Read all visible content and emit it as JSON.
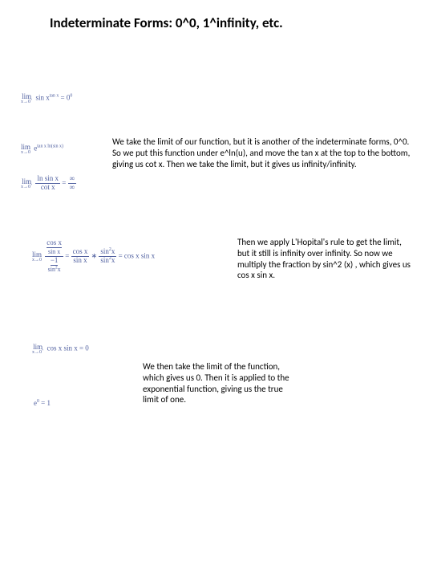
{
  "title": "Indeterminate Forms: 0^0, 1^infinity, etc.",
  "equations": {
    "eq1_html": "<span class='lim'><span class='lt'>lim</span><span class='lb'>x→0<sup>+</sup></span></span> sin x<sup>tan x</sup> = 0<sup>0</sup>",
    "eq2_html": "<span class='lim'><span class='lt'>lim</span><span class='lb'>x→0</span></span> e<sup>tan x ln(sin x)</sup>",
    "eq3_html": "<span class='lim'><span class='lt'>lim</span><span class='lb'>x→0<sup>+</sup></span></span> <span class='frac'><span class='num'>ln sin x</span><span class='den'>cot x</span></span> = <span class='frac'><span class='num'>∞</span><span class='den'>∞</span></span>",
    "eq4_html": "<span class='lim'><span class='lt'>lim</span><span class='lb'>x→0</span></span> <span class='frac'><span class='num'><span style=\"display:inline-block;border-bottom:0.5px solid #5060a0;\">cos x</span><br><span style=\"font-size:8px;\">sin x</span></span><span class='den'><span style=\"display:inline-block;border-bottom:0.5px solid #5060a0;\">−1</span><br><span style=\"font-size:8px;\">sin<sup>2</sup>x</span></span></span> = <span class='frac'><span class='num'>cos x</span><span class='den'>sin x</span></span> ∗ <span class='frac'><span class='num'>sin<sup>2</sup>x</span><span class='den'>sin<sup>2</sup>x</span></span> = cos x sin x",
    "eq5_html": "<span class='lim'><span class='lt'>lim</span><span class='lb'>x→0<sup>+</sup></span></span> cos x sin x = 0",
    "eq6_html": "e<sup>0</sup> = 1"
  },
  "paragraphs": {
    "p1": "We take the limit of our function, but it is another of the indeterminate forms, 0^0. So we put this function under e^ln(u), and move the tan x at the top to the bottom, giving us cot x. Then we take the limit, but it gives us infinity/infinity.",
    "p2": "Then we apply L'Hopital's rule to get the limit, but it still is infinity over infinity. So now we multiply the fraction by sin^2 (x) , which gives us cos x sin x.",
    "p3": "We then take the limit of the function, which gives us 0. Then it is applied to the exponential function, giving us the true limit of one."
  },
  "style": {
    "bg": "#ffffff",
    "text_color": "#000000",
    "math_color": "#5060a0",
    "title_fontsize": 17,
    "body_fontsize": 11,
    "math_fontsize": 9
  }
}
